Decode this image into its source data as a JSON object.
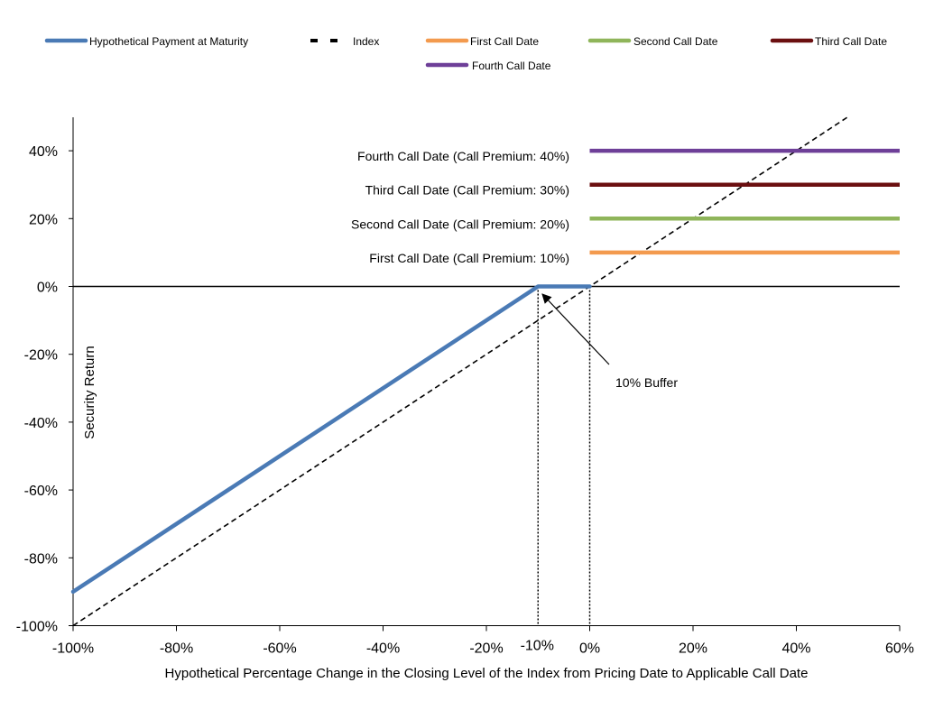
{
  "chart_data": {
    "type": "line",
    "xlabel": "Hypothetical Percentage Change in the Closing Level of the Index from Pricing Date to Applicable Call Date",
    "ylabel": "Security Return",
    "xlim": [
      -100,
      60
    ],
    "ylim": [
      -100,
      50
    ],
    "x_ticks": [
      {
        "value": -100,
        "label": "-100%"
      },
      {
        "value": -80,
        "label": "-80%"
      },
      {
        "value": -60,
        "label": "-60%"
      },
      {
        "value": -40,
        "label": "-40%"
      },
      {
        "value": -20,
        "label": "-20%"
      },
      {
        "value": 0,
        "label": "0%"
      },
      {
        "value": 20,
        "label": "20%"
      },
      {
        "value": 40,
        "label": "40%"
      },
      {
        "value": 60,
        "label": "60%"
      }
    ],
    "extra_x_tick": {
      "value": -10,
      "label": "-10%"
    },
    "y_ticks": [
      {
        "value": 40,
        "label": "40%"
      },
      {
        "value": 20,
        "label": "20%"
      },
      {
        "value": 0,
        "label": "0%"
      },
      {
        "value": -20,
        "label": "-20%"
      },
      {
        "value": -40,
        "label": "-40%"
      },
      {
        "value": -60,
        "label": "-60%"
      },
      {
        "value": -80,
        "label": "-80%"
      },
      {
        "value": -100,
        "label": "-100%"
      }
    ],
    "legend_placement": "top",
    "grid": false,
    "series": [
      {
        "name": "Hypothetical Payment at Maturity",
        "color": "#4a7ab5",
        "style": "solid",
        "x": [
          -100,
          -10,
          0
        ],
        "y": [
          -90,
          0,
          0
        ]
      },
      {
        "name": "Index",
        "color": "#000000",
        "style": "dashed",
        "x": [
          -100,
          50
        ],
        "y": [
          -100,
          50
        ]
      },
      {
        "name": "First Call Date",
        "color": "#f39a4e",
        "style": "solid",
        "x": [
          0,
          60
        ],
        "y": [
          10,
          10
        ]
      },
      {
        "name": "Second Call Date",
        "color": "#8fb55a",
        "style": "solid",
        "x": [
          0,
          60
        ],
        "y": [
          20,
          20
        ]
      },
      {
        "name": "Third Call Date",
        "color": "#6b0f10",
        "style": "solid",
        "x": [
          0,
          60
        ],
        "y": [
          30,
          30
        ]
      },
      {
        "name": "Fourth Call Date",
        "color": "#6e3f98",
        "style": "solid",
        "x": [
          0,
          60
        ],
        "y": [
          40,
          40
        ]
      }
    ],
    "call_labels": [
      {
        "y": 40,
        "text": "Fourth Call Date (Call Premium: 40%)"
      },
      {
        "y": 30,
        "text": "Third Call Date (Call Premium: 30%)"
      },
      {
        "y": 20,
        "text": "Second Call Date (Call Premium: 20%)"
      },
      {
        "y": 10,
        "text": "First Call Date (Call Premium: 10%)"
      }
    ],
    "buffer_annotation": {
      "text": "10% Buffer",
      "x_from": -10,
      "x_to": 0
    }
  }
}
